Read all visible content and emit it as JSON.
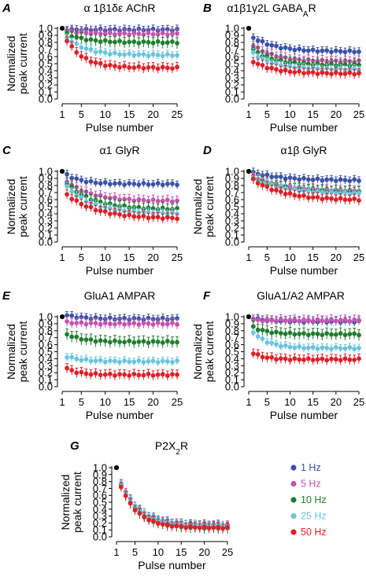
{
  "chart_data": [
    {
      "panel": "A",
      "title": "α 1β1δε AChR",
      "type": "scatter",
      "xlabel": "Pulse number",
      "ylabel": "Normalized peak current",
      "xticks": [
        1,
        5,
        10,
        15,
        20,
        25
      ],
      "yticks": [
        "0.0",
        "0.1",
        "0.2",
        "0.3",
        "0.4",
        "0.5",
        "0.6",
        "0.7",
        "0.8",
        "0.9",
        "1.0"
      ],
      "xlim": [
        1,
        25
      ],
      "ylim": [
        0,
        1.0
      ],
      "series": [
        {
          "name": "1 Hz",
          "start": 0.98,
          "end": 0.98,
          "k": 0.1
        },
        {
          "name": "5 Hz",
          "start": 0.96,
          "end": 0.92,
          "k": 0.25
        },
        {
          "name": "10 Hz",
          "start": 0.92,
          "end": 0.8,
          "k": 0.25
        },
        {
          "name": "25 Hz",
          "start": 0.87,
          "end": 0.62,
          "k": 0.25
        },
        {
          "name": "50 Hz",
          "start": 0.83,
          "end": 0.44,
          "k": 0.28
        }
      ]
    },
    {
      "panel": "B",
      "title": "α1β1γ2L GABA",
      "title_sub": "A",
      "title_tail": "R",
      "type": "scatter",
      "xlabel": "Pulse number",
      "ylabel": "",
      "xticks": [
        1,
        5,
        10,
        15,
        20,
        25
      ],
      "yticks": [
        "0.0",
        "0.1",
        "0.2",
        "0.3",
        "0.4",
        "0.5",
        "0.6",
        "0.7",
        "0.8",
        "0.9",
        "1.0"
      ],
      "xlim": [
        1,
        25
      ],
      "ylim": [
        0,
        1.0
      ],
      "series": [
        {
          "name": "1 Hz",
          "start": 0.87,
          "end": 0.67,
          "k": 0.2
        },
        {
          "name": "5 Hz",
          "start": 0.76,
          "end": 0.53,
          "k": 0.22
        },
        {
          "name": "10 Hz",
          "start": 0.7,
          "end": 0.48,
          "k": 0.22
        },
        {
          "name": "25 Hz",
          "start": 0.65,
          "end": 0.42,
          "k": 0.22
        },
        {
          "name": "50 Hz",
          "start": 0.53,
          "end": 0.36,
          "k": 0.22
        }
      ]
    },
    {
      "panel": "C",
      "title": "α1 GlyR",
      "type": "scatter",
      "xlabel": "Pulse number",
      "ylabel": "Normalized peak current",
      "xticks": [
        1,
        5,
        10,
        15,
        20,
        25
      ],
      "yticks": [
        "0.0",
        "0.1",
        "0.2",
        "0.3",
        "0.4",
        "0.5",
        "0.6",
        "0.7",
        "0.8",
        "0.9",
        "1.0"
      ],
      "xlim": [
        1,
        25
      ],
      "ylim": [
        0,
        1.0
      ],
      "series": [
        {
          "name": "1 Hz",
          "start": 0.95,
          "end": 0.82,
          "k": 0.3
        },
        {
          "name": "5 Hz",
          "start": 0.86,
          "end": 0.58,
          "k": 0.2
        },
        {
          "name": "10 Hz",
          "start": 0.83,
          "end": 0.46,
          "k": 0.18
        },
        {
          "name": "25 Hz",
          "start": 0.78,
          "end": 0.4,
          "k": 0.18
        },
        {
          "name": "50 Hz",
          "start": 0.67,
          "end": 0.33,
          "k": 0.16
        }
      ]
    },
    {
      "panel": "D",
      "title": "α1β GlyR",
      "type": "scatter",
      "xlabel": "Pulse number",
      "ylabel": "Normalized peak current",
      "xticks": [
        1,
        5,
        10,
        15,
        20,
        25
      ],
      "yticks": [
        "0.0",
        "0.1",
        "0.2",
        "0.3",
        "0.4",
        "0.5",
        "0.6",
        "0.7",
        "0.8",
        "0.9",
        "1.0"
      ],
      "xlim": [
        1,
        25
      ],
      "ylim": [
        0,
        1.0
      ],
      "series": [
        {
          "name": "1 Hz",
          "start": 0.98,
          "end": 0.87,
          "k": 0.15
        },
        {
          "name": "5 Hz",
          "start": 0.93,
          "end": 0.72,
          "k": 0.15
        },
        {
          "name": "10 Hz",
          "start": 0.91,
          "end": 0.7,
          "k": 0.15
        },
        {
          "name": "25 Hz",
          "start": 0.92,
          "end": 0.68,
          "k": 0.15
        },
        {
          "name": "50 Hz",
          "start": 0.88,
          "end": 0.59,
          "k": 0.15
        }
      ]
    },
    {
      "panel": "E",
      "title": "GluA1 AMPAR",
      "type": "scatter",
      "xlabel": "Pulse number",
      "ylabel": "Normalized peak current",
      "xticks": [
        1,
        5,
        10,
        15,
        20,
        25
      ],
      "yticks": [
        "0.0",
        "0.1",
        "0.2",
        "0.3",
        "0.4",
        "0.5",
        "0.6",
        "0.7",
        "0.8",
        "0.9",
        "1.0"
      ],
      "xlim": [
        1,
        25
      ],
      "ylim": [
        0,
        1.0
      ],
      "series": [
        {
          "name": "1 Hz",
          "start": 1.02,
          "end": 0.97,
          "k": 0.3
        },
        {
          "name": "5 Hz",
          "start": 0.92,
          "end": 0.9,
          "k": 0.3
        },
        {
          "name": "10 Hz",
          "start": 0.75,
          "end": 0.64,
          "k": 0.3
        },
        {
          "name": "25 Hz",
          "start": 0.43,
          "end": 0.36,
          "k": 0.3
        },
        {
          "name": "50 Hz",
          "start": 0.26,
          "end": 0.17,
          "k": 0.4
        }
      ]
    },
    {
      "panel": "F",
      "title": "GluA1/A2 AMPAR",
      "type": "scatter",
      "xlabel": "Pulse number",
      "ylabel": "Normalized peak current",
      "xticks": [
        1,
        5,
        10,
        15,
        20,
        25
      ],
      "yticks": [
        "0.0",
        "0.1",
        "0.2",
        "0.3",
        "0.4",
        "0.5",
        "0.6",
        "0.7",
        "0.8",
        "0.9",
        "1.0"
      ],
      "xlim": [
        1,
        25
      ],
      "ylim": [
        0,
        1.0
      ],
      "series": [
        {
          "name": "1 Hz",
          "start": 0.98,
          "end": 0.93,
          "k": 0.3
        },
        {
          "name": "5 Hz",
          "start": 0.95,
          "end": 0.95,
          "k": 0.3
        },
        {
          "name": "10 Hz",
          "start": 0.85,
          "end": 0.75,
          "k": 0.3
        },
        {
          "name": "25 Hz",
          "start": 0.78,
          "end": 0.55,
          "k": 0.3
        },
        {
          "name": "50 Hz",
          "start": 0.48,
          "end": 0.39,
          "k": 0.4
        }
      ]
    },
    {
      "panel": "G",
      "title": "P2X",
      "title_sub": "2",
      "title_tail": "R",
      "type": "scatter",
      "xlabel": "Pulse number",
      "ylabel": "Normalized peak current",
      "xticks": [
        1,
        5,
        10,
        15,
        20,
        25
      ],
      "yticks": [
        "0.0",
        "0.1",
        "0.2",
        "0.3",
        "0.4",
        "0.5",
        "0.6",
        "0.7",
        "0.8",
        "0.9",
        "1.0"
      ],
      "xlim": [
        1,
        25
      ],
      "ylim": [
        0,
        1.0
      ],
      "series": [
        {
          "name": "1 Hz",
          "start": 0.78,
          "end": 0.17,
          "k": 0.25
        },
        {
          "name": "5 Hz",
          "start": 0.76,
          "end": 0.15,
          "k": 0.26
        },
        {
          "name": "10 Hz",
          "start": 0.74,
          "end": 0.13,
          "k": 0.26
        },
        {
          "name": "25 Hz",
          "start": 0.77,
          "end": 0.16,
          "k": 0.25
        },
        {
          "name": "50 Hz",
          "start": 0.73,
          "end": 0.13,
          "k": 0.27
        }
      ]
    }
  ],
  "legend": {
    "items": [
      {
        "label": "1 Hz",
        "color": "#3a52a6"
      },
      {
        "label": "5 Hz",
        "color": "#c553b0"
      },
      {
        "label": "10 Hz",
        "color": "#1f7d2e"
      },
      {
        "label": "25 Hz",
        "color": "#6cc4dc"
      },
      {
        "label": "50 Hz",
        "color": "#e01f26"
      }
    ]
  },
  "colors": {
    "1 Hz": "#3a52a6",
    "5 Hz": "#c553b0",
    "10 Hz": "#1f7d2e",
    "25 Hz": "#6cc4dc",
    "50 Hz": "#e01f26",
    "first_point": "#000000"
  }
}
